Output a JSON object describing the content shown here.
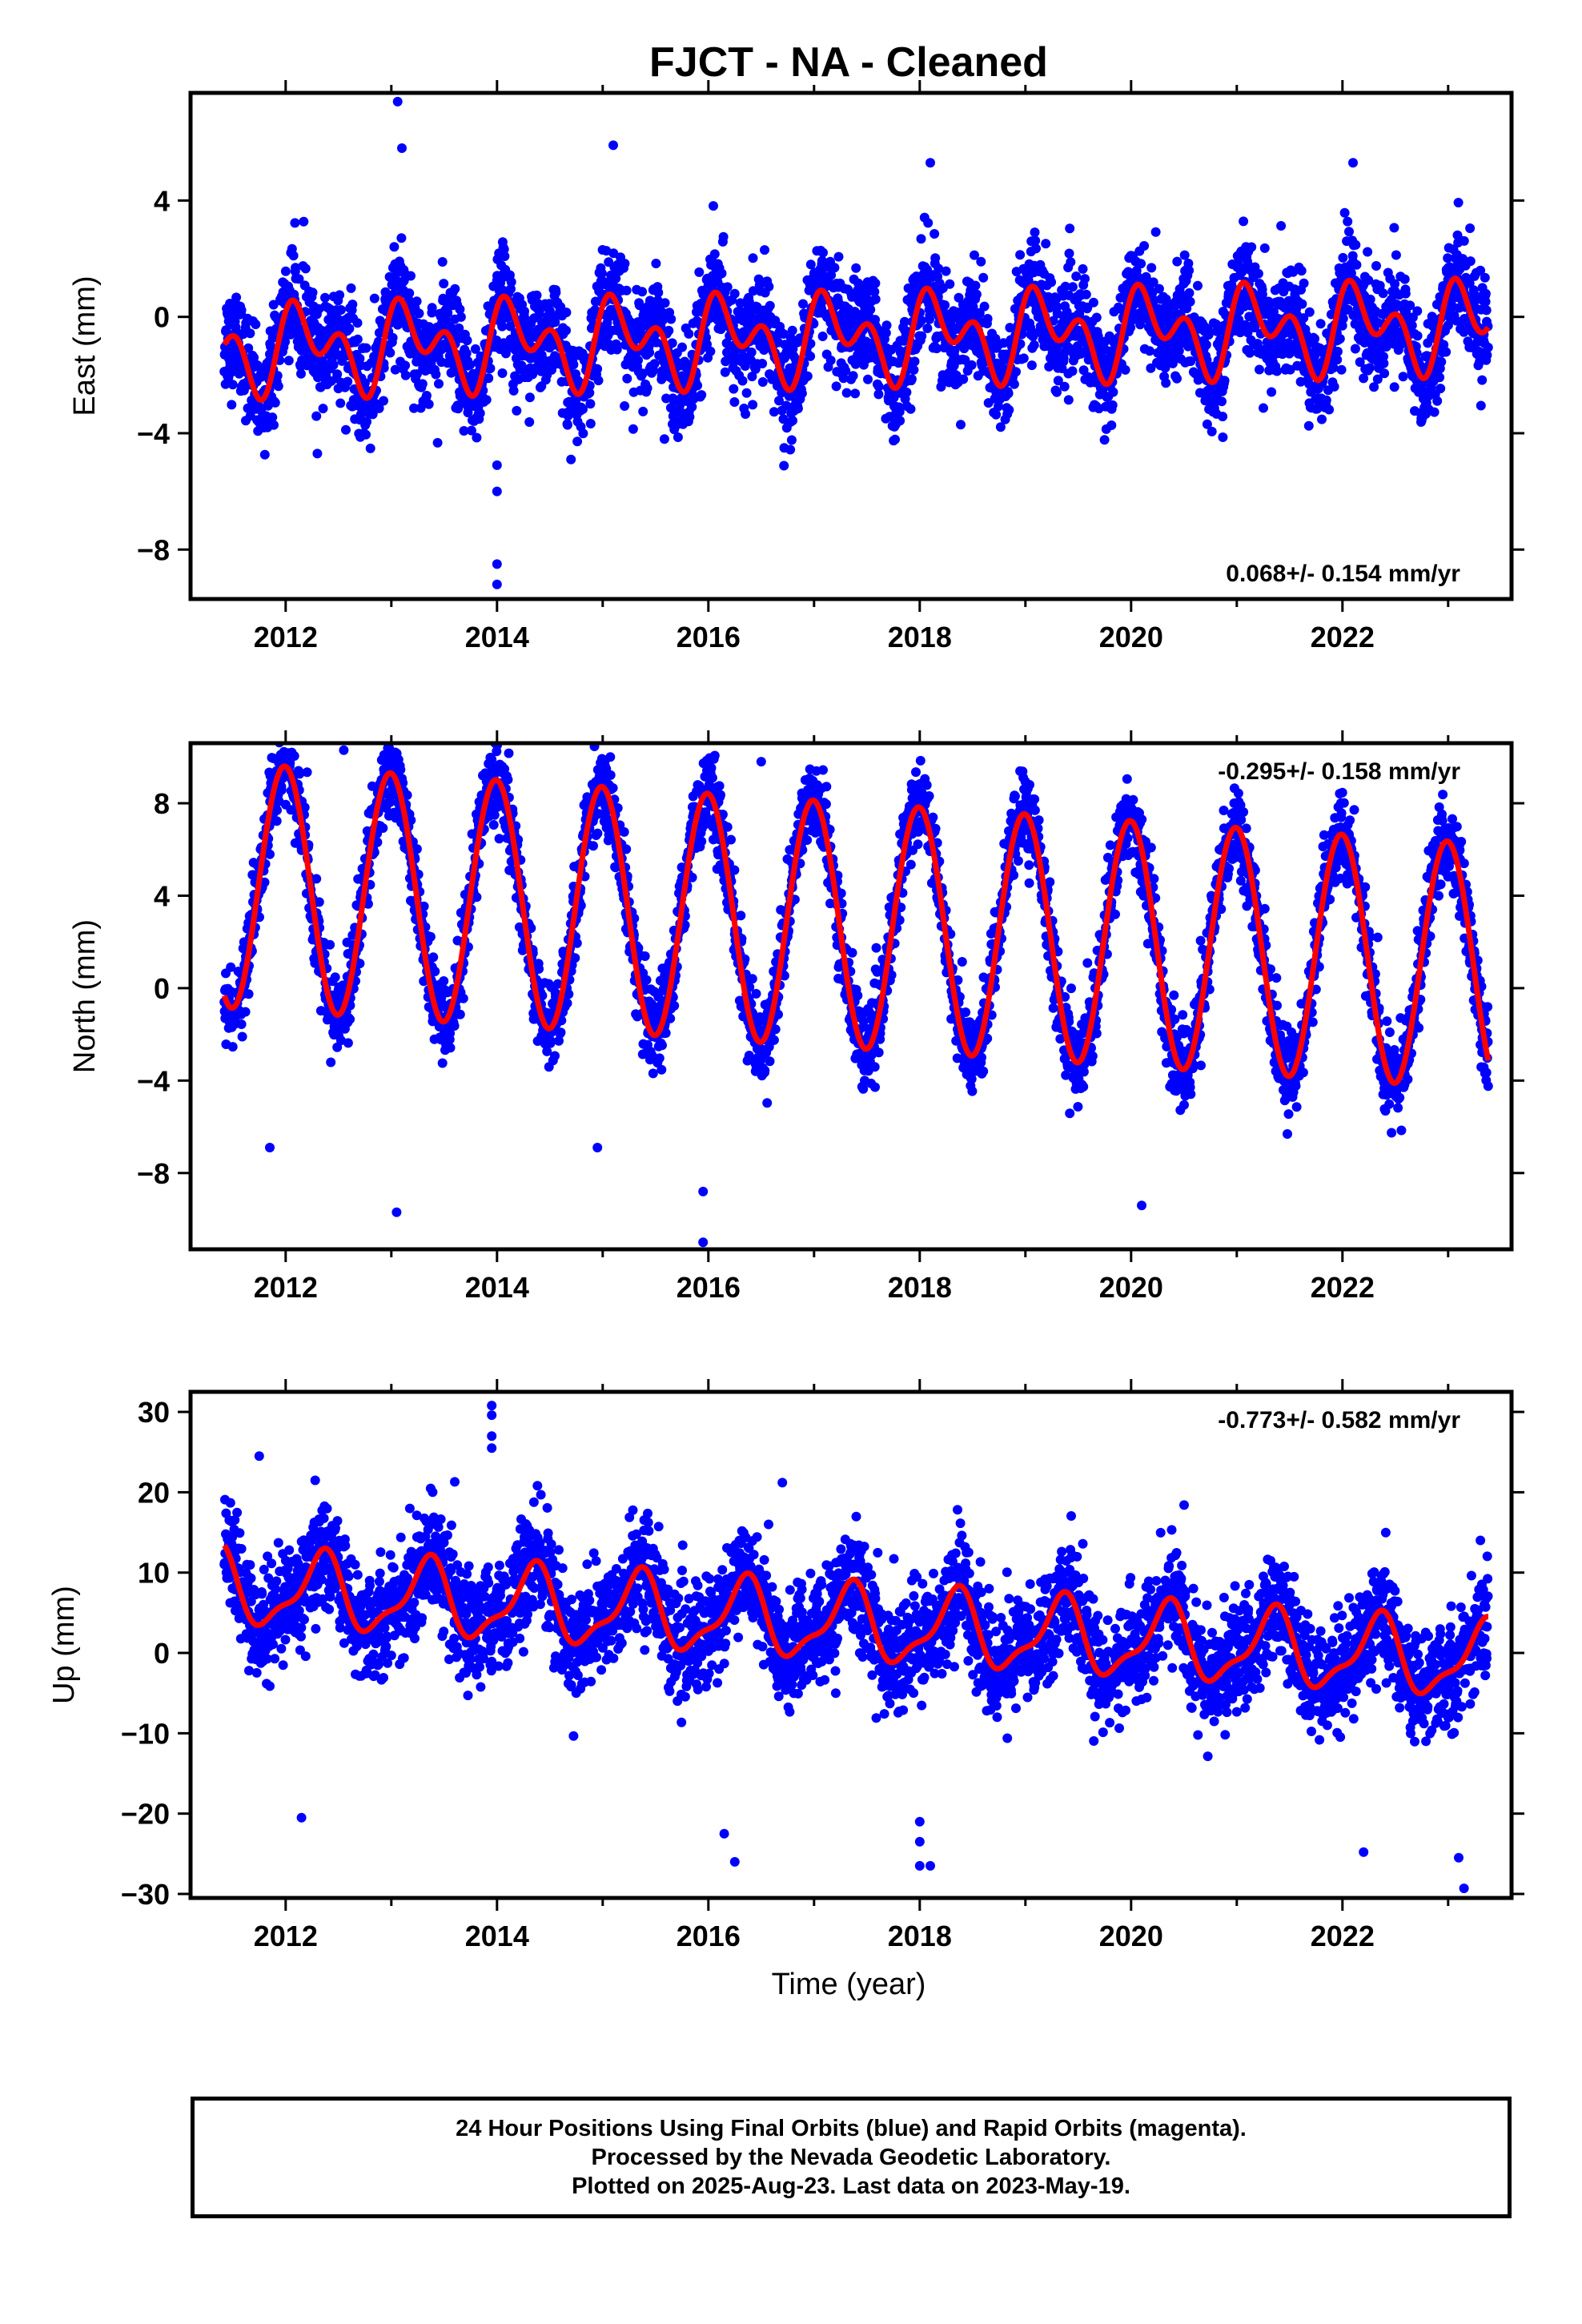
{
  "title": "FJCT  - NA - Cleaned",
  "xlabel": "Time (year)",
  "footer": {
    "line1": "24 Hour Positions Using Final Orbits (blue) and Rapid Orbits (magenta).",
    "line2": "Processed by the Nevada Geodetic Laboratory.",
    "line3": "Plotted on 2025-Aug-23. Last data on 2023-May-19."
  },
  "colors": {
    "observations": "#0000ff",
    "model": "#ff0000",
    "axes": "#000000"
  },
  "chart_data": [
    {
      "type": "scatter",
      "component": "East",
      "ylabel": "East (mm)",
      "rate_label": "0.068+/- 0.154 mm/yr",
      "rate_position": "bottom-right",
      "xlim": [
        2011.1,
        2023.6
      ],
      "ylim": [
        -9.7,
        7.7
      ],
      "xticks": [
        2012,
        2014,
        2016,
        2018,
        2020,
        2022
      ],
      "xtick_labels": [
        "2012",
        "2014",
        "2016",
        "2018",
        "2020",
        "2022"
      ],
      "yticks": [
        -8,
        -4,
        0,
        4
      ],
      "ytick_labels": [
        "−8",
        "−4",
        "0",
        "4"
      ],
      "grid": false,
      "series": [
        {
          "kind": "points",
          "color": "#0000ff",
          "x_range": [
            2011.42,
            2023.38
          ],
          "model": {
            "offset": -0.7,
            "trend": 0.068,
            "annual": [
              0.9,
              0.4
            ],
            "semiannual": [
              0.45,
              0.85
            ]
          },
          "noise_sd": 0.9,
          "outliers": [
            [
              2013.06,
              7.4
            ],
            [
              2014.0,
              -9.2
            ],
            [
              2014.0,
              -8.5
            ],
            [
              2014.0,
              -6.0
            ],
            [
              2014.0,
              -5.1
            ],
            [
              2012.3,
              -4.7
            ],
            [
              2014.7,
              -4.9
            ],
            [
              2013.1,
              5.8
            ],
            [
              2015.1,
              5.9
            ],
            [
              2018.1,
              5.3
            ],
            [
              2022.1,
              5.3
            ]
          ]
        },
        {
          "kind": "line",
          "color": "#ff0000",
          "x_range": [
            2011.42,
            2023.38
          ]
        }
      ]
    },
    {
      "type": "scatter",
      "component": "North",
      "ylabel": "North (mm)",
      "rate_label": "-0.295+/- 0.158 mm/yr",
      "rate_position": "top-right",
      "xlim": [
        2011.1,
        2023.6
      ],
      "ylim": [
        -11.3,
        10.6
      ],
      "xticks": [
        2012,
        2014,
        2016,
        2018,
        2020,
        2022
      ],
      "xtick_labels": [
        "2012",
        "2014",
        "2016",
        "2018",
        "2020",
        "2022"
      ],
      "yticks": [
        -8,
        -4,
        0,
        4,
        8
      ],
      "ytick_labels": [
        "−8",
        "−4",
        "0",
        "4",
        "8"
      ],
      "grid": false,
      "series": [
        {
          "kind": "points",
          "color": "#0000ff",
          "x_range": [
            2011.42,
            2023.38
          ],
          "model": {
            "offset": 2.7,
            "trend": -0.295,
            "annual": [
              -0.3,
              5.3
            ],
            "semiannual": [
              0.0,
              0.0
            ]
          },
          "noise_sd": 0.9,
          "outliers": [
            [
              2013.05,
              -9.7
            ],
            [
              2015.95,
              -8.8
            ],
            [
              2015.95,
              -11.0
            ],
            [
              2011.85,
              -6.9
            ],
            [
              2014.95,
              -6.9
            ],
            [
              2012.55,
              10.3
            ],
            [
              2016.5,
              9.8
            ],
            [
              2020.1,
              -9.4
            ]
          ]
        },
        {
          "kind": "line",
          "color": "#ff0000",
          "x_range": [
            2011.42,
            2023.38
          ]
        }
      ]
    },
    {
      "type": "scatter",
      "component": "Up",
      "ylabel": "Up (mm)",
      "rate_label": "-0.773+/- 0.582 mm/yr",
      "rate_position": "top-right",
      "xlim": [
        2011.1,
        2023.6
      ],
      "ylim": [
        -30.5,
        32.5
      ],
      "xticks": [
        2012,
        2014,
        2016,
        2018,
        2020,
        2022
      ],
      "xtick_labels": [
        "2012",
        "2014",
        "2016",
        "2018",
        "2020",
        "2022"
      ],
      "yticks": [
        -30,
        -20,
        -10,
        0,
        10,
        20,
        30
      ],
      "ytick_labels": [
        "−30",
        "−20",
        "−10",
        "0",
        "10",
        "20",
        "30"
      ],
      "grid": false,
      "series": [
        {
          "kind": "points",
          "color": "#0000ff",
          "x_range": [
            2011.42,
            2023.38
          ],
          "model": {
            "offset": 3.5,
            "trend": -0.773,
            "annual": [
              3.8,
              -2.2
            ],
            "semiannual": [
              -1.4,
              0.6
            ]
          },
          "noise_sd": 3.4,
          "outliers": [
            [
              2013.95,
              30.8
            ],
            [
              2013.95,
              29.6
            ],
            [
              2013.95,
              27.0
            ],
            [
              2013.95,
              25.5
            ],
            [
              2011.75,
              24.5
            ],
            [
              2012.15,
              -20.5
            ],
            [
              2016.15,
              -22.5
            ],
            [
              2016.25,
              -26.0
            ],
            [
              2018.0,
              -21.0
            ],
            [
              2018.0,
              -23.5
            ],
            [
              2018.0,
              -26.5
            ],
            [
              2018.1,
              -26.5
            ],
            [
              2023.15,
              -29.3
            ],
            [
              2023.1,
              -25.5
            ],
            [
              2022.2,
              -24.8
            ],
            [
              2013.6,
              21.3
            ],
            [
              2016.7,
              21.2
            ]
          ]
        },
        {
          "kind": "line",
          "color": "#ff0000",
          "x_range": [
            2011.42,
            2023.38
          ]
        }
      ]
    }
  ]
}
